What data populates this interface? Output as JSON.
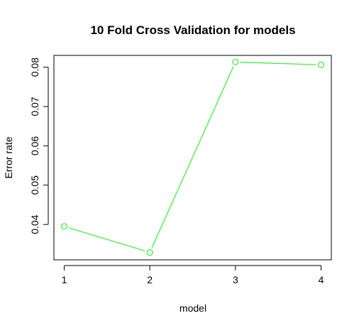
{
  "chart_data": {
    "type": "line",
    "title": "10 Fold Cross Validation for models",
    "xlabel": "model",
    "ylabel": "Error rate",
    "x": [
      1,
      2,
      3,
      4
    ],
    "series": [
      {
        "values": [
          0.0395,
          0.0329,
          0.0813,
          0.0806
        ]
      }
    ],
    "xticks": [
      "1",
      "2",
      "3",
      "4"
    ],
    "yticks": [
      "0.04",
      "0.05",
      "0.06",
      "0.07",
      "0.08"
    ],
    "xlim": [
      0.88,
      4.12
    ],
    "ylim": [
      0.031,
      0.083
    ],
    "grid": false,
    "colors": {
      "line": "#33ee33",
      "axis": "#000000"
    }
  }
}
